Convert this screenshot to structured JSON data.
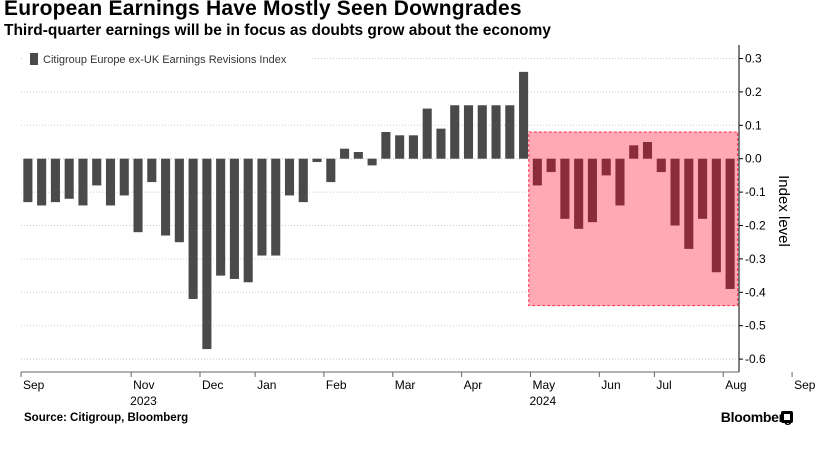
{
  "header": {
    "title": "European Earnings Have Mostly Seen Downgrades",
    "subtitle": "Third-quarter earnings will be in focus as doubts grow about the economy"
  },
  "footer": {
    "source": "Source: Citigroup, Bloomberg",
    "brand": "Bloomberg"
  },
  "colors": {
    "bar": "#4a4a4a",
    "bar_highlight": "#8a2c3b",
    "highlight_fill": "#ff9aa8",
    "highlight_border": "#ff2a4d",
    "grid": "#c8c8c8",
    "axis": "#000000"
  },
  "chart_data": {
    "type": "bar",
    "legend": {
      "label": "Citigroup Europe ex-UK Earnings Revisions Index",
      "placement": "top-left"
    },
    "ylabel": "Index level",
    "y_axis_side": "right",
    "ylim": [
      -0.65,
      0.33
    ],
    "yticks": [
      0.3,
      0.2,
      0.1,
      0.0,
      -0.1,
      -0.2,
      -0.3,
      -0.4,
      -0.5,
      -0.6
    ],
    "ytick_labels": [
      "0.3",
      "0.2",
      "0.1",
      "0.0",
      "-0.1",
      "-0.2",
      "-0.3",
      "-0.4",
      "-0.5",
      "-0.6"
    ],
    "grid": "horizontal dotted",
    "x_month_labels": [
      {
        "label": "Sep",
        "index": 0
      },
      {
        "label": "Nov",
        "index": 8
      },
      {
        "label": "Dec",
        "index": 13
      },
      {
        "label": "Jan",
        "index": 17
      },
      {
        "label": "Feb",
        "index": 22
      },
      {
        "label": "Mar",
        "index": 27
      },
      {
        "label": "Apr",
        "index": 32
      },
      {
        "label": "May",
        "index": 37
      },
      {
        "label": "Jun",
        "index": 42
      },
      {
        "label": "Jul",
        "index": 46
      },
      {
        "label": "Aug",
        "index": 51
      },
      {
        "label": "Sep",
        "index": 56
      }
    ],
    "x_year_labels": [
      {
        "label": "2023",
        "index": 8
      },
      {
        "label": "2024",
        "index": 37
      }
    ],
    "values": [
      -0.13,
      -0.14,
      -0.13,
      -0.12,
      -0.14,
      -0.08,
      -0.14,
      -0.11,
      -0.22,
      -0.07,
      -0.23,
      -0.25,
      -0.42,
      -0.57,
      -0.35,
      -0.36,
      -0.37,
      -0.29,
      -0.29,
      -0.11,
      -0.13,
      -0.01,
      -0.07,
      0.03,
      0.02,
      -0.02,
      0.08,
      0.07,
      0.07,
      0.15,
      0.09,
      0.16,
      0.16,
      0.16,
      0.16,
      0.16,
      0.26,
      -0.08,
      -0.04,
      -0.18,
      -0.21,
      -0.19,
      -0.05,
      -0.14,
      0.04,
      0.05,
      -0.04,
      -0.2,
      -0.27,
      -0.18,
      -0.34,
      -0.39
    ],
    "highlight": {
      "from_index": 37,
      "to_index": 51,
      "y_range": [
        -0.44,
        0.08
      ]
    }
  }
}
